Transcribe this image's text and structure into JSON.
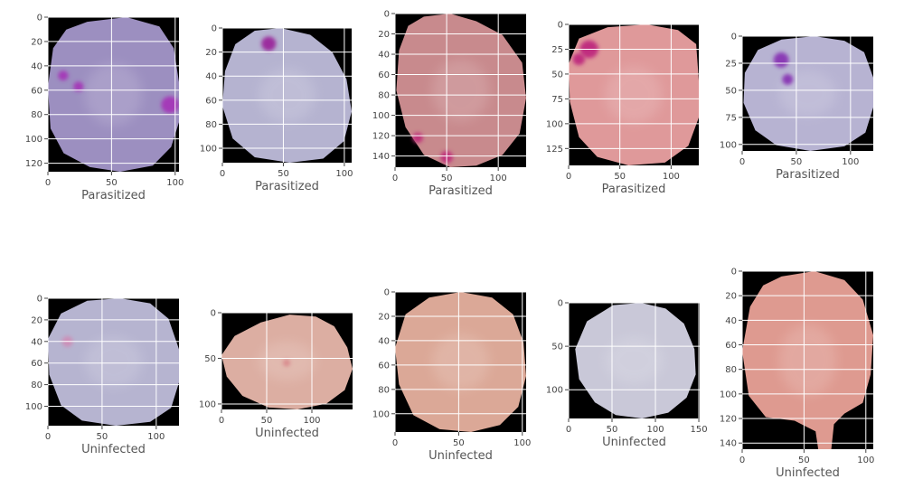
{
  "chart_data": [
    {
      "type": "image",
      "xlabel": "Parasitized",
      "xlim": [
        0,
        103
      ],
      "ylim": [
        0,
        127
      ],
      "xticks": [
        0,
        50,
        100
      ],
      "yticks": [
        0,
        20,
        40,
        60,
        80,
        100,
        120
      ],
      "cell_color": "#9c8fc0",
      "parasite_color": "#a43ab8",
      "stains": [
        {
          "x": 96,
          "y": 72,
          "r": 7
        },
        {
          "x": 12,
          "y": 48,
          "r": 4
        },
        {
          "x": 24,
          "y": 57,
          "r": 4
        }
      ]
    },
    {
      "type": "image",
      "xlabel": "Parasitized",
      "xlim": [
        0,
        106
      ],
      "ylim": [
        0,
        112
      ],
      "xticks": [
        0,
        50,
        100
      ],
      "yticks": [
        0,
        20,
        40,
        60,
        80,
        100
      ],
      "cell_color": "#b5b3d0",
      "parasite_color": "#9b2f9e",
      "stains": [
        {
          "x": 38,
          "y": 13,
          "r": 6
        }
      ]
    },
    {
      "type": "image",
      "xlabel": "Parasitized",
      "xlim": [
        0,
        127
      ],
      "ylim": [
        0,
        151
      ],
      "xticks": [
        0,
        50,
        100
      ],
      "yticks": [
        0,
        20,
        40,
        60,
        80,
        100,
        120,
        140
      ],
      "cell_color": "#c88a8d",
      "parasite_color": "#c0307a",
      "stains": [
        {
          "x": 50,
          "y": 141,
          "r": 6
        },
        {
          "x": 22,
          "y": 122,
          "r": 5
        }
      ]
    },
    {
      "type": "image",
      "xlabel": "Parasitized",
      "xlim": [
        0,
        127
      ],
      "ylim": [
        0,
        142
      ],
      "xticks": [
        0,
        50,
        100
      ],
      "yticks": [
        0,
        25,
        50,
        75,
        100,
        125
      ],
      "cell_color": "#df999a",
      "parasite_color": "#c02f7f",
      "stains": [
        {
          "x": 20,
          "y": 25,
          "r": 9
        },
        {
          "x": 10,
          "y": 35,
          "r": 6
        }
      ]
    },
    {
      "type": "image",
      "xlabel": "Parasitized",
      "xlim": [
        0,
        121
      ],
      "ylim": [
        0,
        106
      ],
      "xticks": [
        0,
        50,
        100
      ],
      "yticks": [
        0,
        25,
        50,
        75,
        100
      ],
      "cell_color": "#b7b3d2",
      "parasite_color": "#8a3bb5",
      "stains": [
        {
          "x": 36,
          "y": 22,
          "r": 7
        },
        {
          "x": 42,
          "y": 40,
          "r": 5
        }
      ]
    },
    {
      "type": "image",
      "xlabel": "Uninfected",
      "xlim": [
        0,
        121
      ],
      "ylim": [
        0,
        118
      ],
      "xticks": [
        0,
        50,
        100
      ],
      "yticks": [
        0,
        20,
        40,
        60,
        80,
        100
      ],
      "cell_color": "#b6b4d0",
      "parasite_color": "#cc8fb8",
      "stains": [
        {
          "x": 18,
          "y": 40,
          "r": 5
        }
      ]
    },
    {
      "type": "image",
      "xlabel": "Uninfected",
      "xlim": [
        0,
        145
      ],
      "ylim": [
        0,
        106
      ],
      "xticks": [
        0,
        50,
        100
      ],
      "yticks": [
        0,
        50,
        100
      ],
      "cell_color": "#dcaea2",
      "parasite_color": "#d98b8e",
      "stains": [
        {
          "x": 72,
          "y": 55,
          "r": 4
        }
      ]
    },
    {
      "type": "image",
      "xlabel": "Uninfected",
      "xlim": [
        0,
        103
      ],
      "ylim": [
        0,
        115
      ],
      "xticks": [
        0,
        50,
        100
      ],
      "yticks": [
        0,
        20,
        40,
        60,
        80,
        100
      ],
      "cell_color": "#dba897",
      "parasite_color": "#dba897",
      "stains": []
    },
    {
      "type": "image",
      "xlabel": "Uninfected",
      "xlim": [
        0,
        151
      ],
      "ylim": [
        0,
        133
      ],
      "xticks": [
        0,
        50,
        100,
        150
      ],
      "yticks": [
        0,
        50,
        100
      ],
      "cell_color": "#c9c8d8",
      "parasite_color": "#c9c8d8",
      "stains": []
    },
    {
      "type": "image",
      "xlabel": "Uninfected",
      "xlim": [
        0,
        106
      ],
      "ylim": [
        0,
        145
      ],
      "xticks": [
        0,
        50,
        100
      ],
      "yticks": [
        0,
        20,
        40,
        60,
        80,
        100,
        120,
        140
      ],
      "cell_color": "#de9a90",
      "parasite_color": "#de9a90",
      "stains": []
    }
  ]
}
